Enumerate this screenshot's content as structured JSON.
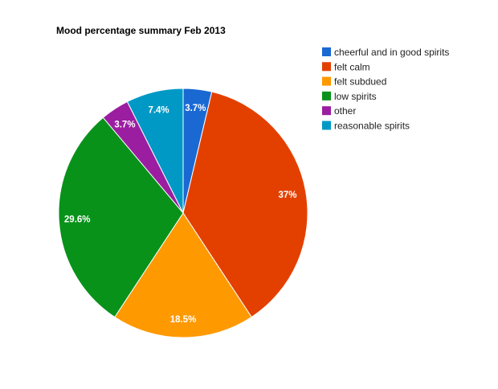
{
  "chart_data": {
    "type": "pie",
    "title": "Mood percentage summary Feb 2013",
    "legend_position": "right",
    "start_angle": "top, clockwise",
    "slices": [
      {
        "label": "cheerful and in good spirits",
        "value": 3.7,
        "display": "3.7%",
        "color": "#1a69d3"
      },
      {
        "label": "felt calm",
        "value": 37.0,
        "display": "37%",
        "color": "#e34000"
      },
      {
        "label": "felt subdued",
        "value": 18.5,
        "display": "18.5%",
        "color": "#ff9900"
      },
      {
        "label": "low spirits",
        "value": 29.6,
        "display": "29.6%",
        "color": "#08921a"
      },
      {
        "label": "other",
        "value": 3.7,
        "display": "3.7%",
        "color": "#9b1ea1"
      },
      {
        "label": "reasonable spirits",
        "value": 7.4,
        "display": "7.4%",
        "color": "#0099c6"
      }
    ]
  }
}
